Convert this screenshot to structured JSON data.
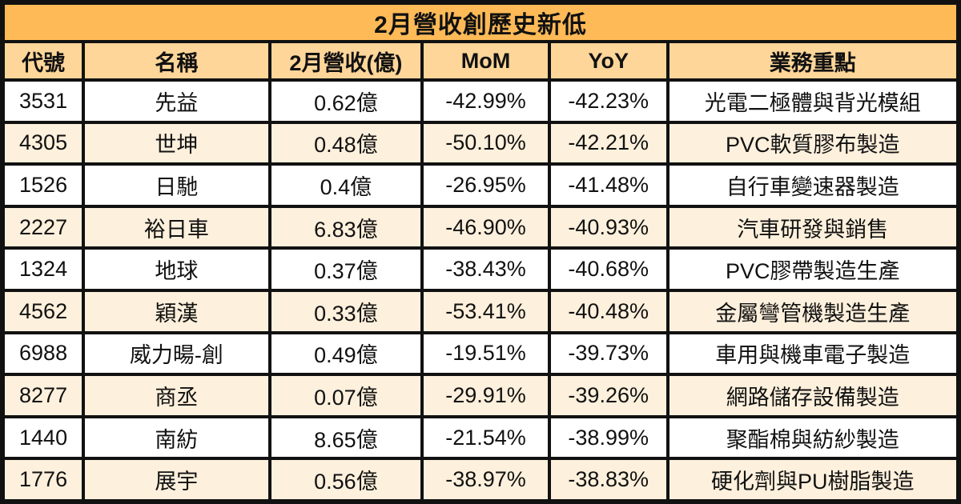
{
  "title": "2月營收創歷史新低",
  "colors": {
    "title_bg": "#FDBA57",
    "header_bg": "#FED699",
    "row_bg": "#FFFFFF",
    "row_alt_bg": "#FDF0DC",
    "border_color": "#111111",
    "text_color": "#111111"
  },
  "chart_data": {
    "type": "table",
    "title": "2月營收創歷史新低",
    "columns": [
      "代號",
      "名稱",
      "2月營收(億)",
      "MoM",
      "YoY",
      "業務重點"
    ],
    "rows": [
      [
        "3531",
        "先益",
        "0.62億",
        "-42.99%",
        "-42.23%",
        "光電二極體與背光模組"
      ],
      [
        "4305",
        "世坤",
        "0.48億",
        "-50.10%",
        "-42.21%",
        "PVC軟質膠布製造"
      ],
      [
        "1526",
        "日馳",
        "0.4億",
        "-26.95%",
        "-41.48%",
        "自行車變速器製造"
      ],
      [
        "2227",
        "裕日車",
        "6.83億",
        "-46.90%",
        "-40.93%",
        "汽車研發與銷售"
      ],
      [
        "1324",
        "地球",
        "0.37億",
        "-38.43%",
        "-40.68%",
        "PVC膠帶製造生產"
      ],
      [
        "4562",
        "穎漢",
        "0.33億",
        "-53.41%",
        "-40.48%",
        "金屬彎管機製造生產"
      ],
      [
        "6988",
        "威力暘-創",
        "0.49億",
        "-19.51%",
        "-39.73%",
        "車用與機車電子製造"
      ],
      [
        "8277",
        "商丞",
        "0.07億",
        "-29.91%",
        "-39.26%",
        "網路儲存設備製造"
      ],
      [
        "1440",
        "南紡",
        "8.65億",
        "-21.54%",
        "-38.99%",
        "聚酯棉與紡紗製造"
      ],
      [
        "1776",
        "展宇",
        "0.56億",
        "-38.97%",
        "-38.83%",
        "硬化劑與PU樹脂製造"
      ]
    ],
    "layout": {
      "grid": true,
      "striped_rows": true,
      "column_width_pct": [
        8.4,
        19.5,
        16.0,
        13.3,
        12.4,
        30.4
      ]
    }
  }
}
